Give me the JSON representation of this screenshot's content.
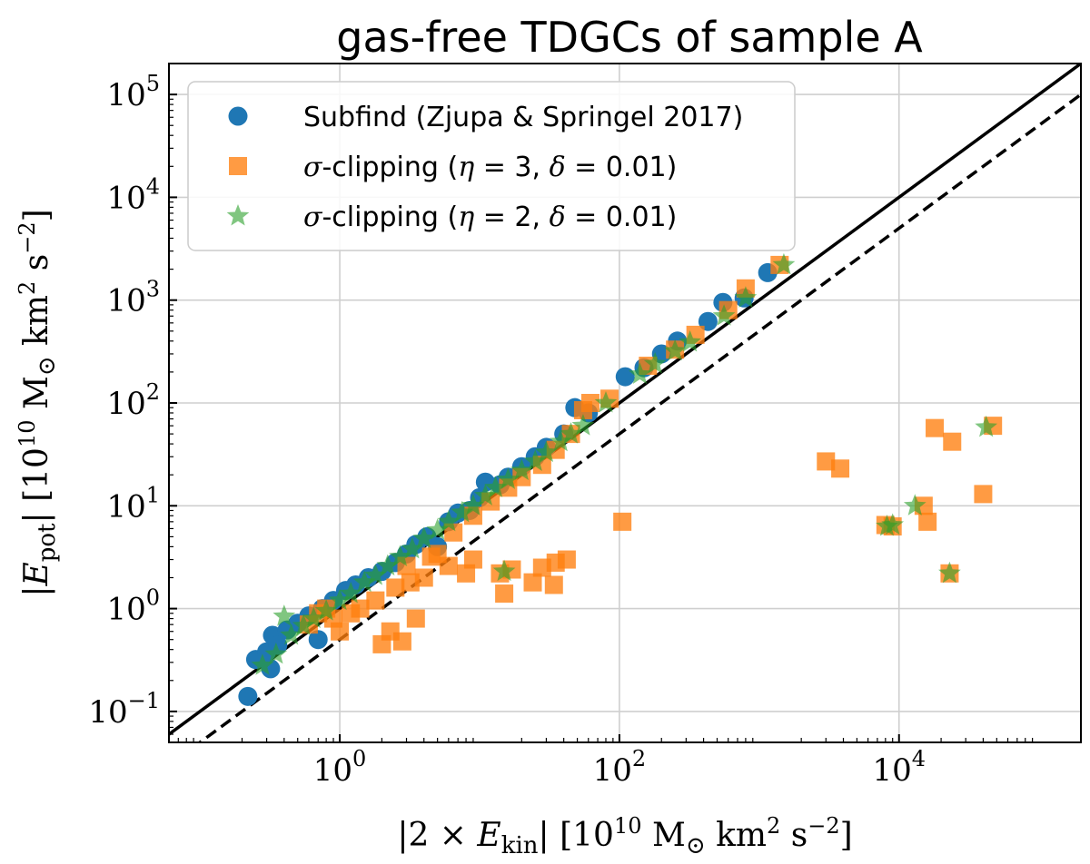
{
  "chart_data": {
    "type": "scatter",
    "title": "gas-free TDGCs of sample A",
    "xlabel": "|2 × E_kin| [10^10 M⊙ km^2 s^−2]",
    "ylabel": "|E_pot| [10^10 M⊙ km^2 s^−2]",
    "xscale": "log",
    "yscale": "log",
    "xlim": [
      0.06,
      200000
    ],
    "ylim": [
      0.05,
      200000
    ],
    "grid": true,
    "legend_position": "upper-left",
    "x_ticks": [
      {
        "base": "10",
        "exp": "0",
        "value": 1
      },
      {
        "base": "10",
        "exp": "2",
        "value": 100
      },
      {
        "base": "10",
        "exp": "4",
        "value": 10000
      }
    ],
    "y_ticks": [
      {
        "base": "10",
        "exp": "−1",
        "value": 0.1
      },
      {
        "base": "10",
        "exp": "0",
        "value": 1
      },
      {
        "base": "10",
        "exp": "1",
        "value": 10
      },
      {
        "base": "10",
        "exp": "2",
        "value": 100
      },
      {
        "base": "10",
        "exp": "3",
        "value": 1000
      },
      {
        "base": "10",
        "exp": "4",
        "value": 10000
      },
      {
        "base": "10",
        "exp": "5",
        "value": 100000
      }
    ],
    "reference_lines": [
      {
        "style": "solid",
        "relation": "y = x",
        "color": "#000000"
      },
      {
        "style": "dashed",
        "relation": "y = x / 2",
        "color": "#000000"
      }
    ],
    "series": [
      {
        "name": "Subfind (Zjupa & Springel 2017)",
        "marker": "circle",
        "color": "#1f77b4",
        "points": [
          [
            0.22,
            0.14
          ],
          [
            0.25,
            0.32
          ],
          [
            0.3,
            0.38
          ],
          [
            0.32,
            0.26
          ],
          [
            0.33,
            0.55
          ],
          [
            0.36,
            0.44
          ],
          [
            0.42,
            0.62
          ],
          [
            0.5,
            0.72
          ],
          [
            0.6,
            0.85
          ],
          [
            0.7,
            0.5
          ],
          [
            0.75,
            1.0
          ],
          [
            0.9,
            1.2
          ],
          [
            1.1,
            1.5
          ],
          [
            1.3,
            1.7
          ],
          [
            1.6,
            2.0
          ],
          [
            2.0,
            2.3
          ],
          [
            2.5,
            2.8
          ],
          [
            3.0,
            3.4
          ],
          [
            3.5,
            4.2
          ],
          [
            4.2,
            5.0
          ],
          [
            5.0,
            4.0
          ],
          [
            6.0,
            7.0
          ],
          [
            7.0,
            8.5
          ],
          [
            8.5,
            9.0
          ],
          [
            10,
            12
          ],
          [
            11,
            17
          ],
          [
            14,
            16
          ],
          [
            16,
            19
          ],
          [
            20,
            24
          ],
          [
            25,
            30
          ],
          [
            30,
            37
          ],
          [
            40,
            50
          ],
          [
            48,
            90
          ],
          [
            60,
            80
          ],
          [
            110,
            180
          ],
          [
            150,
            220
          ],
          [
            200,
            300
          ],
          [
            260,
            400
          ],
          [
            430,
            620
          ],
          [
            550,
            950
          ],
          [
            780,
            1050
          ],
          [
            1150,
            1850
          ]
        ]
      },
      {
        "name": "σ-clipping (η = 3, δ = 0.01)",
        "marker": "square",
        "color": "#ff7f0e",
        "points": [
          [
            0.6,
            0.7
          ],
          [
            0.7,
            0.9
          ],
          [
            0.8,
            1.0
          ],
          [
            0.9,
            0.8
          ],
          [
            1.0,
            0.6
          ],
          [
            1.2,
            0.9
          ],
          [
            1.4,
            1.0
          ],
          [
            1.8,
            1.2
          ],
          [
            2.0,
            0.45
          ],
          [
            2.3,
            0.6
          ],
          [
            2.8,
            0.48
          ],
          [
            3.5,
            0.8
          ],
          [
            2.5,
            1.6
          ],
          [
            3.2,
            1.8
          ],
          [
            4.0,
            2.0
          ],
          [
            5.0,
            3.4
          ],
          [
            6.0,
            2.6
          ],
          [
            8.0,
            2.2
          ],
          [
            9.0,
            3.0
          ],
          [
            15,
            1.4
          ],
          [
            14,
            2.2
          ],
          [
            17,
            2.4
          ],
          [
            24,
            1.8
          ],
          [
            28,
            2.5
          ],
          [
            34,
            1.7
          ],
          [
            35,
            2.8
          ],
          [
            42,
            3.0
          ],
          [
            3.0,
            2.6
          ],
          [
            4.5,
            3.2
          ],
          [
            6.5,
            5.5
          ],
          [
            9.0,
            8.0
          ],
          [
            12,
            11
          ],
          [
            16,
            15
          ],
          [
            20,
            19
          ],
          [
            28,
            25
          ],
          [
            35,
            35
          ],
          [
            45,
            50
          ],
          [
            55,
            85
          ],
          [
            62,
            100
          ],
          [
            85,
            110
          ],
          [
            105,
            7.0
          ],
          [
            160,
            230
          ],
          [
            250,
            330
          ],
          [
            350,
            460
          ],
          [
            600,
            800
          ],
          [
            800,
            1300
          ],
          [
            1400,
            2200
          ],
          [
            3000,
            27
          ],
          [
            3800,
            23
          ],
          [
            8000,
            6.5
          ],
          [
            9000,
            6.3
          ],
          [
            15000,
            10
          ],
          [
            16000,
            7.0
          ],
          [
            18000,
            57
          ],
          [
            23000,
            2.2
          ],
          [
            24000,
            42
          ],
          [
            40000,
            13
          ],
          [
            47000,
            60
          ]
        ]
      },
      {
        "name": "σ-clipping (η = 2, δ = 0.01)",
        "marker": "star",
        "color": "#2ca02c",
        "points": [
          [
            0.28,
            0.28
          ],
          [
            0.35,
            0.36
          ],
          [
            0.4,
            0.84
          ],
          [
            0.45,
            0.55
          ],
          [
            0.55,
            0.68
          ],
          [
            0.65,
            0.8
          ],
          [
            0.8,
            0.95
          ],
          [
            1.0,
            1.2
          ],
          [
            1.2,
            1.4
          ],
          [
            1.5,
            1.8
          ],
          [
            1.8,
            2.1
          ],
          [
            2.2,
            2.6
          ],
          [
            2.7,
            3.2
          ],
          [
            3.3,
            3.8
          ],
          [
            4.0,
            4.8
          ],
          [
            5.0,
            5.8
          ],
          [
            6.0,
            7.0
          ],
          [
            7.5,
            8.6
          ],
          [
            9.0,
            10
          ],
          [
            11,
            12.5
          ],
          [
            13,
            15
          ],
          [
            15,
            2.3
          ],
          [
            16,
            18
          ],
          [
            20,
            22
          ],
          [
            25,
            27
          ],
          [
            30,
            33
          ],
          [
            38,
            42
          ],
          [
            45,
            50
          ],
          [
            55,
            60
          ],
          [
            80,
            100
          ],
          [
            140,
            190
          ],
          [
            180,
            240
          ],
          [
            250,
            320
          ],
          [
            320,
            390
          ],
          [
            560,
            700
          ],
          [
            800,
            1050
          ],
          [
            1500,
            2200
          ],
          [
            8200,
            6.3
          ],
          [
            9000,
            6.5
          ],
          [
            13000,
            10
          ],
          [
            23000,
            2.2
          ],
          [
            42000,
            58
          ]
        ]
      }
    ]
  }
}
